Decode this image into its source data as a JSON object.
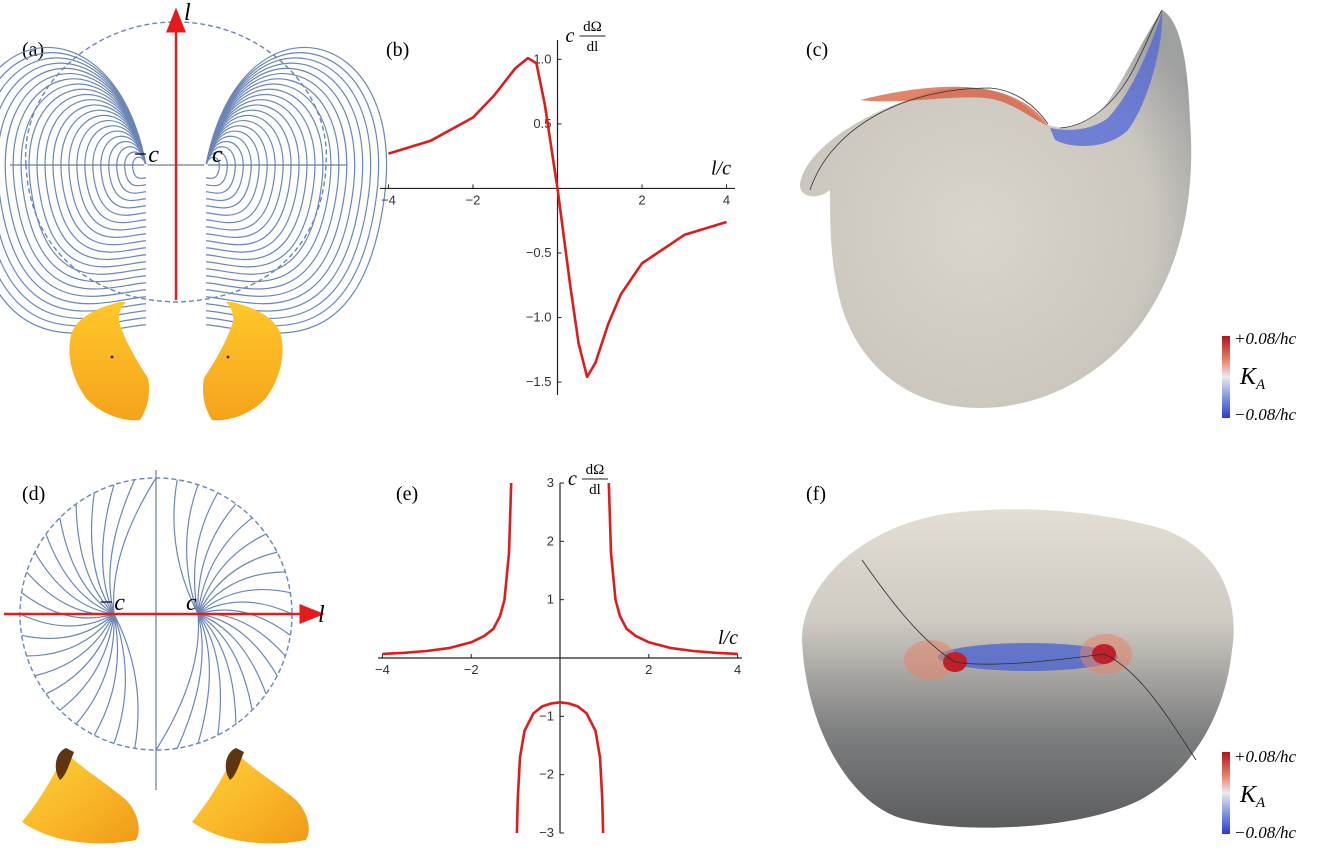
{
  "panels": {
    "a": {
      "label": "(a)",
      "axis_label": "l",
      "marker_neg": "−c",
      "marker_pos": "c"
    },
    "b": {
      "label": "(b)"
    },
    "c": {
      "label": "(c)",
      "colorbar": {
        "max": "+0.08/hc",
        "name": "K_A",
        "name_main": "K",
        "name_sub": "A",
        "min": "−0.08/hc"
      }
    },
    "d": {
      "label": "(d)",
      "axis_label": "l",
      "marker_neg": "−c",
      "marker_pos": "c"
    },
    "e": {
      "label": "(e)"
    },
    "f": {
      "label": "(f)",
      "colorbar": {
        "max": "+0.08/hc",
        "name": "K_A",
        "name_main": "K",
        "name_sub": "A",
        "min": "−0.08/hc"
      }
    }
  },
  "chart_data": [
    {
      "id": "b",
      "type": "line",
      "title": "",
      "xlabel": "l/c",
      "ylabel_prefix": "c",
      "ylabel_num": "dΩ",
      "ylabel_den": "dl",
      "xlim": [
        -4.2,
        4.2
      ],
      "ylim": [
        -1.6,
        1.15
      ],
      "xticks": [
        -4,
        -2,
        2,
        4
      ],
      "xtick_labels": [
        "−4",
        "−2",
        "2",
        "4"
      ],
      "yticks": [
        1.0,
        0.5,
        -0.5,
        -1.0,
        -1.5
      ],
      "ytick_labels": [
        "1.0",
        "0.5",
        "−0.5",
        "−1.0",
        "−1.5"
      ],
      "color": "#dd1c1c",
      "series": [
        {
          "x": [
            -4,
            -3,
            -2,
            -1.5,
            -1,
            -0.7,
            -0.5,
            -0.3,
            0,
            0.3,
            0.5,
            0.7,
            0.9,
            1.2,
            1.5,
            2,
            3,
            4
          ],
          "y": [
            0.27,
            0.37,
            0.55,
            0.72,
            0.93,
            1.01,
            0.97,
            0.65,
            0,
            -0.75,
            -1.2,
            -1.46,
            -1.35,
            -1.05,
            -0.82,
            -0.58,
            -0.36,
            -0.26
          ]
        }
      ]
    },
    {
      "id": "e",
      "type": "line",
      "title": "",
      "xlabel": "l/c",
      "ylabel_prefix": "c",
      "ylabel_num": "dΩ",
      "ylabel_den": "dl",
      "xlim": [
        -4.1,
        4.1
      ],
      "ylim": [
        -3,
        3
      ],
      "xticks": [
        -4,
        -2,
        2,
        4
      ],
      "xtick_labels": [
        "−4",
        "−2",
        "2",
        "4"
      ],
      "yticks": [
        3,
        2,
        1,
        -1,
        -2,
        -3
      ],
      "ytick_labels": [
        "3",
        "2",
        "1",
        "−1",
        "−2",
        "−3"
      ],
      "color": "#dd1c1c",
      "series": [
        {
          "x": [
            -4,
            -3.5,
            -3,
            -2.5,
            -2,
            -1.7,
            -1.5,
            -1.35,
            -1.25,
            -1.15,
            -1.1
          ],
          "y": [
            0.07,
            0.09,
            0.12,
            0.17,
            0.27,
            0.38,
            0.5,
            0.72,
            1.0,
            1.8,
            3.0
          ]
        },
        {
          "x": [
            1.1,
            1.15,
            1.25,
            1.35,
            1.5,
            1.7,
            2,
            2.5,
            3,
            3.5,
            4
          ],
          "y": [
            3.0,
            1.8,
            1.0,
            0.72,
            0.5,
            0.38,
            0.27,
            0.17,
            0.12,
            0.09,
            0.07
          ]
        },
        {
          "x": [
            -0.97,
            -0.95,
            -0.9,
            -0.8,
            -0.6,
            -0.4,
            -0.2,
            0,
            0.2,
            0.4,
            0.6,
            0.8,
            0.9,
            0.95,
            0.97
          ],
          "y": [
            -3.0,
            -2.4,
            -1.7,
            -1.25,
            -0.95,
            -0.83,
            -0.78,
            -0.76,
            -0.78,
            -0.83,
            -0.95,
            -1.25,
            -1.7,
            -2.4,
            -3.0
          ]
        }
      ]
    }
  ]
}
